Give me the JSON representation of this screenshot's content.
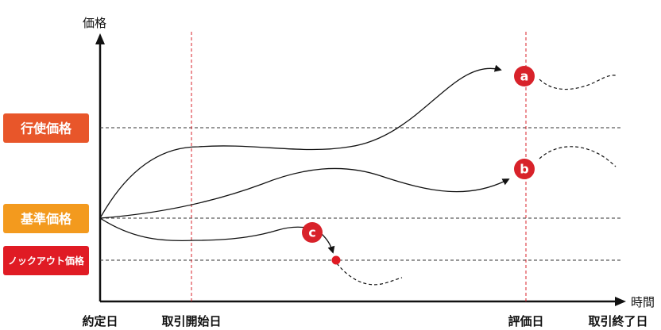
{
  "axes": {
    "y_label": "価格",
    "x_label": "時間"
  },
  "x_labels": {
    "contract": "約定日",
    "trade_start": "取引開始日",
    "evaluation": "評価日",
    "trade_end": "取引終了日"
  },
  "price_levels": {
    "strike": "行使価格",
    "base": "基準価格",
    "knockout": "ノックアウト価格"
  },
  "markers": {
    "a": "a",
    "b": "b",
    "c": "c"
  },
  "colors": {
    "strike_badge": "#e8562a",
    "base_badge": "#f39a1e",
    "knockout_badge": "#e01b24",
    "marker": "#d8222a",
    "guide_line": "#d8222a",
    "axis": "#111111"
  }
}
